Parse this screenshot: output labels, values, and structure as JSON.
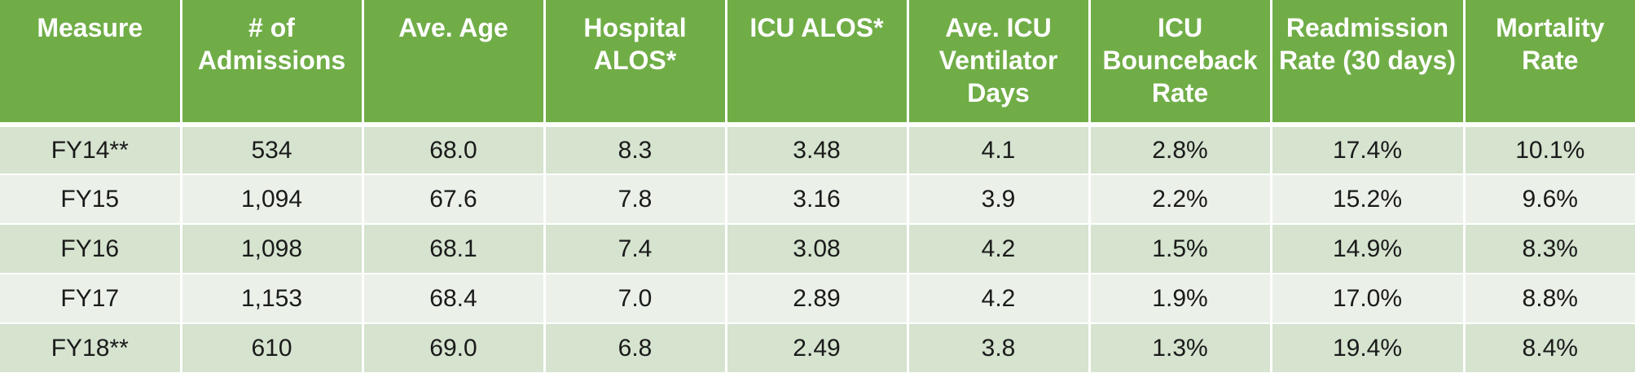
{
  "table": {
    "headers": [
      "Measure",
      "# of Admissions",
      "Ave. Age",
      "Hospital ALOS*",
      "ICU ALOS*",
      "Ave. ICU Ventilator Days",
      "ICU Bounceback Rate",
      "Readmission Rate (30 days)",
      "Mortality Rate"
    ],
    "rows": [
      [
        "FY14**",
        "534",
        "68.0",
        "8.3",
        "3.48",
        "4.1",
        "2.8%",
        "17.4%",
        "10.1%"
      ],
      [
        "FY15",
        "1,094",
        "67.6",
        "7.8",
        "3.16",
        "3.9",
        "2.2%",
        "15.2%",
        "9.6%"
      ],
      [
        "FY16",
        "1,098",
        "68.1",
        "7.4",
        "3.08",
        "4.2",
        "1.5%",
        "14.9%",
        "8.3%"
      ],
      [
        "FY17",
        "1,153",
        "68.4",
        "7.0",
        "2.89",
        "4.2",
        "1.9%",
        "17.0%",
        "8.8%"
      ],
      [
        "FY18**",
        "610",
        "69.0",
        "6.8",
        "2.49",
        "3.8",
        "1.3%",
        "19.4%",
        "8.4%"
      ]
    ]
  },
  "colors": {
    "header_bg": "#70ad47",
    "header_text": "#ffffff",
    "row_band_dark": "#d5e3cf",
    "row_band_light": "#ebf1e9"
  }
}
